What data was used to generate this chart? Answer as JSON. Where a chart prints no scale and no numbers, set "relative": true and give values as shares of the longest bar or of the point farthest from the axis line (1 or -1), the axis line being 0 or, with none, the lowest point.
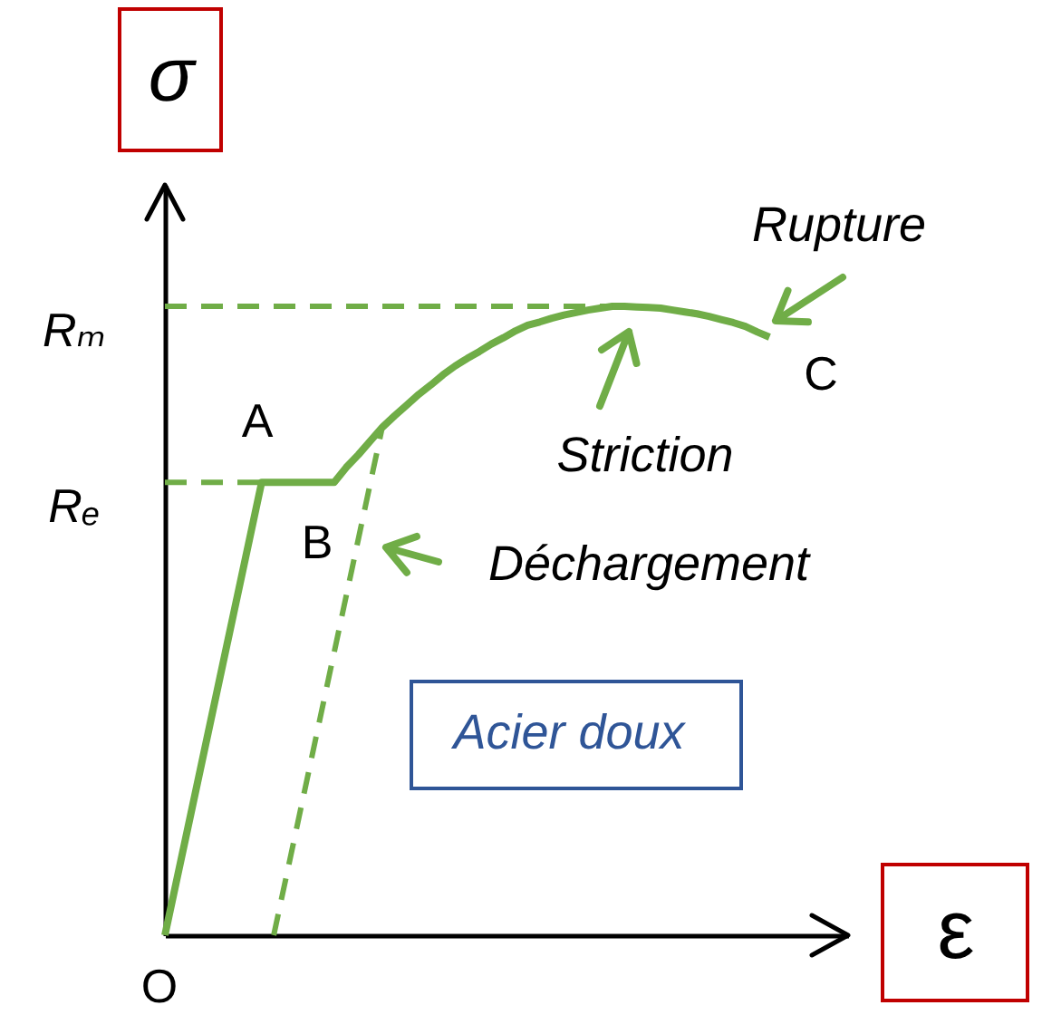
{
  "chart_data": {
    "type": "line",
    "relative": true,
    "line_style": "solid",
    "ylabel": "σ",
    "xlabel": "ε",
    "categories": [
      null,
      null,
      null,
      null,
      null,
      null,
      null,
      null,
      null,
      null,
      null,
      null,
      null,
      null,
      null,
      null,
      null,
      null,
      null,
      null,
      null,
      null,
      null,
      null,
      null,
      null,
      null,
      null,
      null,
      null,
      null,
      null,
      null,
      null,
      null,
      null,
      null,
      null,
      null,
      null,
      null,
      null,
      null,
      null,
      null,
      null,
      null,
      null,
      null,
      null,
      null
    ],
    "series": [
      {
        "color": "#70ad47",
        "values": [
          0,
          0.09,
          0.18,
          0.27,
          0.36,
          0.45,
          0.54,
          0.63,
          0.72,
          0.72,
          0.72,
          0.72,
          0.72,
          0.72,
          0.72,
          0.744,
          0.764,
          0.786,
          0.808,
          0.826,
          0.843,
          0.86,
          0.875,
          0.891,
          0.905,
          0.917,
          0.928,
          0.94,
          0.95,
          0.961,
          0.97,
          0.975,
          0.981,
          0.986,
          0.99,
          0.994,
          0.997,
          1,
          1,
          0.999,
          0.998,
          0.997,
          0.994,
          0.991,
          0.988,
          0.984,
          0.979,
          0.974,
          0.968,
          0.959,
          0.951
        ]
      },
      {
        "color": "#70ad47",
        "line_style": "dashed",
        "values": [
          null,
          null,
          null,
          null,
          null,
          null,
          null,
          null,
          null,
          0,
          0.09,
          0.18,
          0.27,
          0.36,
          0.45,
          0.54,
          0.63,
          0.72,
          0.81,
          null,
          null,
          null,
          null,
          null,
          null,
          null,
          null,
          null,
          null,
          null,
          null,
          null,
          null,
          null,
          null,
          null,
          null,
          null,
          null,
          null,
          null,
          null,
          null,
          null,
          null,
          null,
          null,
          null,
          null,
          null,
          null
        ]
      }
    ],
    "ref_lines": [
      {
        "axis": "y",
        "value": 1,
        "label": "Rₘ",
        "color": "#70ad47",
        "line_style": "dashed"
      },
      {
        "axis": "y",
        "value": 0.72,
        "label": "Rₑ",
        "color": "#70ad47",
        "line_style": "dashed"
      }
    ],
    "annotations": [
      "A",
      "B",
      "C",
      "O",
      "Rupture",
      "Striction",
      "Déchargement",
      "Acier doux"
    ]
  }
}
